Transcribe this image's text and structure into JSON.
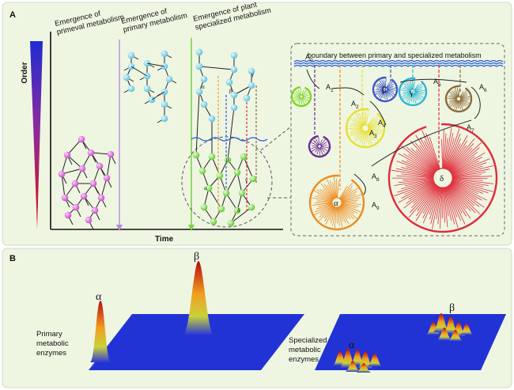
{
  "panel_a": {
    "letter": "A",
    "y_axis_label": "Order",
    "x_axis_label": "Time",
    "eras": [
      {
        "line1": "Emergence of",
        "line2": "primeval metabolism"
      },
      {
        "line1": "Emergence of",
        "line2": "primary metabolism"
      },
      {
        "line1": "Emergence of plant",
        "line2": "specialized metabolism"
      }
    ],
    "boundary_label": "boundary between primary and specialized metabolism",
    "greek_tree": {
      "alpha": "α",
      "beta": "β",
      "gamma": "γ",
      "delta": "δ"
    },
    "compound_labels": [
      "A",
      "A",
      "A",
      "A",
      "A",
      "A",
      "A",
      "A",
      "A",
      "A"
    ],
    "compound_subscripts": [
      "0",
      "1",
      "2",
      "3",
      "4",
      "5",
      "6",
      "7",
      "8",
      "9"
    ],
    "enzyme_labels": {
      "alpha": "α",
      "beta": "β",
      "gamma": "γ",
      "delta": "δ"
    },
    "colors": {
      "primeval_node": "#e066dd",
      "primary_node": "#7fd6ea",
      "specialized_node": "#8ee65a",
      "boundary_wave": "#2a5bd6",
      "alpha_enzyme": "#f08a1c",
      "beta_enzyme": "#3b55cc",
      "gamma_enzyme": "#27b6d8",
      "delta_enzyme": "#e02b3a",
      "yellow_enzyme": "#e8df2a",
      "purple_enzyme": "#6b2a9a",
      "green_enzyme": "#7ad620",
      "brown_enzyme": "#8c6a3a"
    }
  },
  "panel_b": {
    "letter": "B",
    "primary": {
      "line1": "Primary",
      "line2": "metabolic",
      "line3": "enzymes",
      "alpha": "α",
      "beta": "β"
    },
    "specialized": {
      "line1": "Specialized",
      "line2": "metabolic",
      "line3": "enzymes",
      "alpha": "α",
      "beta": "β"
    },
    "plane_color": "#2233d6"
  }
}
